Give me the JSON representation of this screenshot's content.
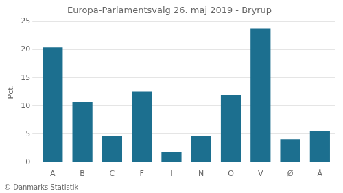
{
  "chart_data": {
    "type": "bar",
    "title": "Europa-Parlamentsvalg 26. maj 2019 - Bryrup",
    "categories": [
      "A",
      "B",
      "C",
      "F",
      "I",
      "N",
      "O",
      "V",
      "Ø",
      "Å"
    ],
    "values": [
      20.4,
      10.7,
      4.7,
      12.6,
      1.8,
      4.7,
      11.9,
      23.8,
      4.1,
      5.5
    ],
    "color": "#1c6f8f",
    "ylabel": "Pct.",
    "footer": "© Danmarks Statistik",
    "ylim": [
      0,
      25
    ],
    "yticks": [
      0,
      5,
      10,
      15,
      20,
      25
    ],
    "grid": true
  }
}
